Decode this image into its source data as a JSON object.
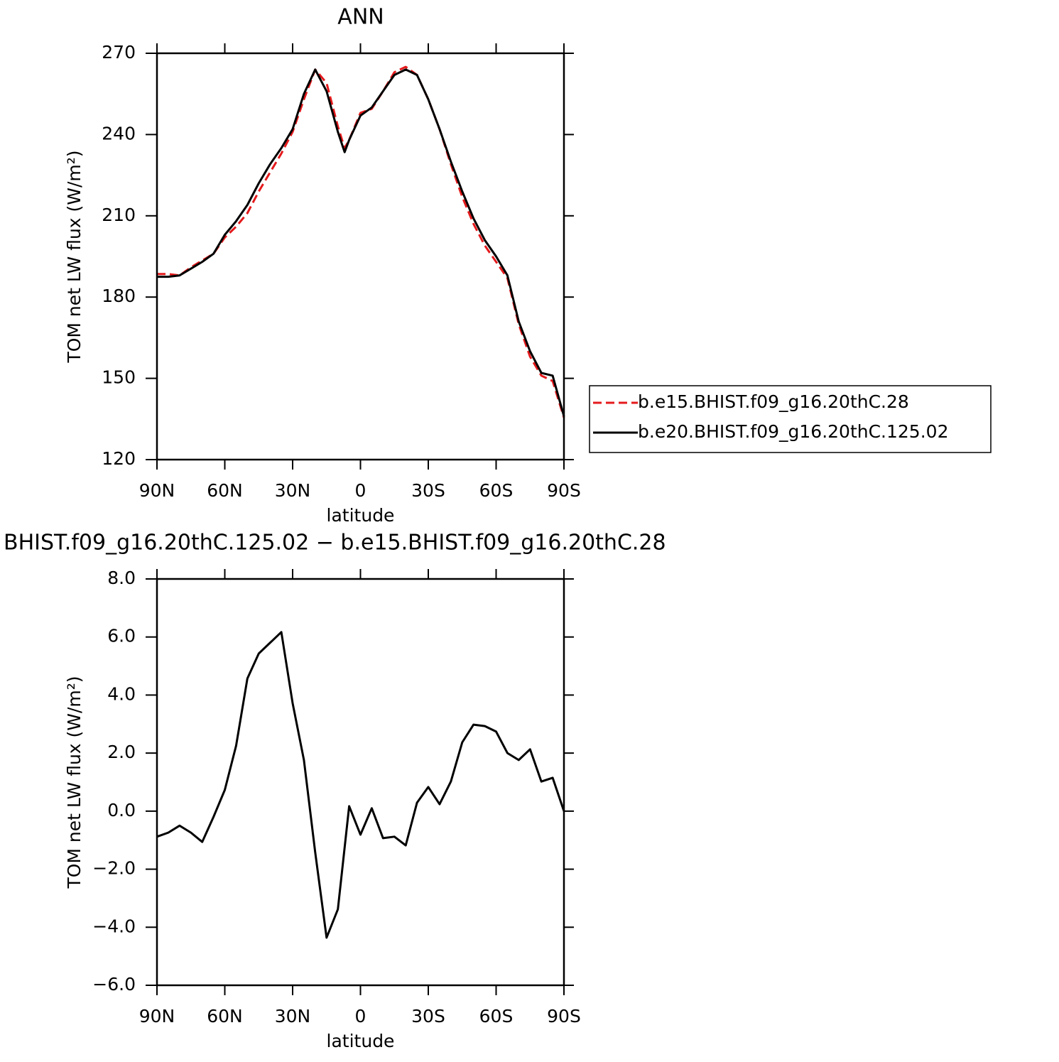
{
  "chart_data": [
    {
      "type": "line",
      "title": "ANN",
      "x_label": "latitude",
      "y_label": "TOM net LW flux (W/m²)",
      "x": [
        90,
        85,
        80,
        75,
        70,
        65,
        60,
        55,
        50,
        45,
        40,
        35,
        30,
        25,
        20,
        15,
        10,
        7,
        5,
        0,
        -5,
        -10,
        -15,
        -20,
        -25,
        -30,
        -35,
        -40,
        -45,
        -50,
        -55,
        -60,
        -65,
        -70,
        -75,
        -80,
        -85,
        -90
      ],
      "series": [
        {
          "name": "b.e15.BHIST.f09_g16.20thC.28",
          "color": "#e41a1c",
          "dash": true,
          "values": [
            188.5,
            188.5,
            188,
            191,
            193.5,
            196,
            202,
            206,
            211,
            219,
            226,
            233,
            241,
            253,
            264,
            259,
            243,
            235,
            238,
            248,
            249.5,
            256,
            263,
            265,
            262,
            253,
            242,
            229,
            217,
            207,
            199,
            193,
            187,
            170,
            158,
            151,
            149,
            135.5
          ]
        },
        {
          "name": "b.e20.BHIST.f09_g16.20thC.125.02",
          "color": "#000000",
          "dash": false,
          "values": [
            187.5,
            187.5,
            188,
            190.5,
            193,
            196,
            203,
            208,
            214,
            222,
            229,
            235,
            242,
            255,
            264,
            256,
            241,
            233.5,
            238,
            247,
            250,
            256,
            262,
            264,
            262,
            253,
            242,
            230,
            219,
            209,
            201,
            195,
            188,
            171,
            160,
            152,
            151,
            136
          ]
        }
      ],
      "xlim": [
        90,
        -90
      ],
      "xticks": [
        {
          "value": 90,
          "label": "90N"
        },
        {
          "value": 60,
          "label": "60N"
        },
        {
          "value": 30,
          "label": "30N"
        },
        0,
        {
          "value": -30,
          "label": "30S"
        },
        {
          "value": -60,
          "label": "60S"
        },
        {
          "value": -90,
          "label": "90S"
        }
      ],
      "ylim": [
        120,
        270
      ],
      "yticks": [
        120,
        150,
        180,
        210,
        240,
        270
      ],
      "legend": "right"
    },
    {
      "type": "line",
      "title": "BHIST.f09_g16.20thC.125.02 − b.e15.BHIST.f09_g16.20thC.28",
      "x_label": "latitude",
      "y_label": "TOM net LW flux (W/m²)",
      "x": [
        90,
        85,
        80,
        75,
        70,
        65,
        60,
        55,
        50,
        45,
        40,
        35,
        30,
        25,
        20,
        15,
        10,
        5,
        0,
        -5,
        -10,
        -15,
        -20,
        -25,
        -30,
        -35,
        -40,
        -45,
        -50,
        -55,
        -60,
        -65,
        -70,
        -75,
        -80,
        -85,
        -90
      ],
      "color": "#000000",
      "values": [
        -0.88,
        -0.74,
        -0.5,
        -0.74,
        -1.06,
        -0.2,
        0.73,
        2.25,
        4.57,
        5.43,
        5.8,
        6.17,
        3.72,
        1.76,
        -1.42,
        -4.36,
        -3.38,
        0.17,
        -0.81,
        0.1,
        -0.93,
        -0.88,
        -1.18,
        0.29,
        0.83,
        0.24,
        1.02,
        2.37,
        2.98,
        2.93,
        2.74,
        2.0,
        1.76,
        2.13,
        1.02,
        1.15,
        0.0
      ],
      "xlim": [
        90,
        -90
      ],
      "xticks": [
        {
          "value": 90,
          "label": "90N"
        },
        {
          "value": 60,
          "label": "60N"
        },
        {
          "value": 30,
          "label": "30N"
        },
        0,
        {
          "value": -30,
          "label": "30S"
        },
        {
          "value": -60,
          "label": "60S"
        },
        {
          "value": -90,
          "label": "90S"
        }
      ],
      "ylim": [
        -6,
        8
      ],
      "yticks": [
        {
          "value": -6,
          "label": "−6.0"
        },
        {
          "value": -4,
          "label": "−4.0"
        },
        {
          "value": -2,
          "label": "−2.0"
        },
        {
          "value": 0,
          "label": "0.0"
        },
        {
          "value": 2,
          "label": "2.0"
        },
        {
          "value": 4,
          "label": "4.0"
        },
        {
          "value": 6,
          "label": "6.0"
        },
        {
          "value": 8,
          "label": "8.0"
        }
      ]
    }
  ]
}
